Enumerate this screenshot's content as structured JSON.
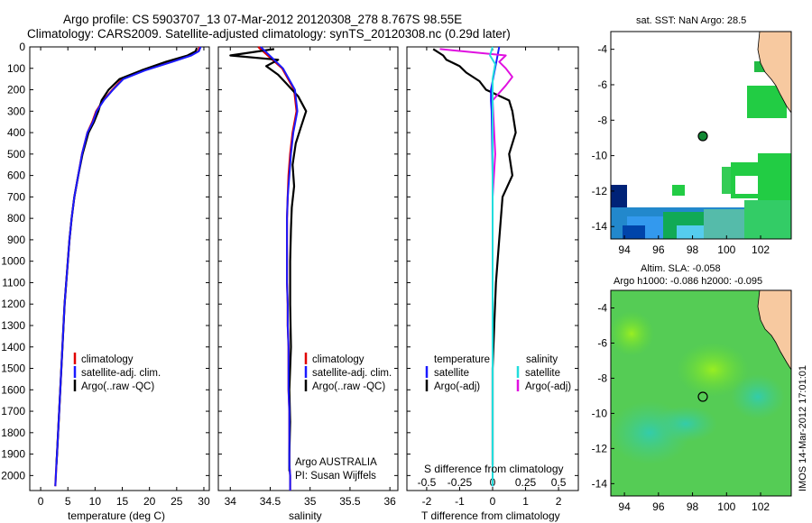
{
  "title": {
    "line1": "Argo profile: CS 5903707_13 07-Mar-2012 20120308_278 8.767S 98.55E",
    "line2": "Climatology: CARS2009. Satellite-adjusted climatology: synTS_20120308.nc (0.29d later)"
  },
  "stamp": "IMOS 14-Mar-2012 17:01:01",
  "colors": {
    "climatology": "#e00000",
    "satellite": "#1a1aff",
    "argo": "#000000",
    "salinity_satellite": "#22dddd",
    "salinity_argo": "#e010e0",
    "land": "#f7c9a0",
    "sst_green": "#11cc44",
    "sla_green": "#66dd33",
    "sla_cyan": "#33ccaa",
    "float_marker": "#118833"
  },
  "panels": {
    "temperature": {
      "xlabel": "temperature (deg C)",
      "xticks": [
        "0",
        "5",
        "10",
        "15",
        "20",
        "25",
        "30"
      ],
      "legend": [
        "climatology",
        "satellite-adj. clim.",
        "Argo(..raw -QC)"
      ]
    },
    "salinity": {
      "xlabel": "salinity",
      "xticks": [
        "34",
        "34.5",
        "35",
        "35.5",
        "36"
      ],
      "legend": [
        "climatology",
        "satellite-adj. clim.",
        "Argo(..raw -QC)"
      ],
      "annot1": "Argo AUSTRALIA",
      "annot2": "PI: Susan Wijffels"
    },
    "difference": {
      "xlabel": "T difference from climatology",
      "top_xlabel": "S difference from climatology",
      "xticks": [
        "-2",
        "-1",
        "0",
        "1",
        "2"
      ],
      "top_xticks": [
        "-0.5",
        "-0.25",
        "0",
        "0.25",
        "0.5"
      ],
      "legend_temp_head": "temperature",
      "legend_sal_head": "salinity",
      "legend_temp": [
        "satellite",
        "Argo(-adj)"
      ],
      "legend_sal": [
        "satellite",
        "Argo(-adj)"
      ]
    },
    "sst_map": {
      "title": "sat. SST: NaN Argo: 28.5",
      "xticks": [
        "94",
        "96",
        "98",
        "100",
        "102"
      ],
      "yticks": [
        "-4",
        "-6",
        "-8",
        "-10",
        "-12",
        "-14"
      ]
    },
    "sla_map": {
      "title1": "Altim. SLA: -0.058",
      "title2": "Argo h1000: -0.086 h2000: -0.095",
      "xticks": [
        "94",
        "96",
        "98",
        "100",
        "102"
      ],
      "yticks": [
        "-4",
        "-6",
        "-8",
        "-10",
        "-12",
        "-14"
      ]
    }
  },
  "yticks": [
    "0",
    "100",
    "200",
    "300",
    "400",
    "500",
    "600",
    "700",
    "800",
    "900",
    "1000",
    "1100",
    "1200",
    "1300",
    "1400",
    "1500",
    "1600",
    "1700",
    "1800",
    "1900",
    "2000"
  ],
  "chart_data": [
    {
      "type": "line",
      "title": "",
      "xlabel": "temperature (deg C)",
      "ylabel": "",
      "xlim": [
        -2,
        31
      ],
      "ylim": [
        2070,
        0
      ],
      "series": [
        {
          "name": "climatology",
          "x": [
            29.2,
            29.0,
            27.5,
            24,
            19,
            15,
            13.2,
            11.5,
            10.2,
            9.5,
            8.6,
            7.6,
            6.9,
            6.2,
            5.7,
            5.3,
            5.0,
            4.7,
            4.4,
            4.2,
            4.0,
            3.8,
            3.6,
            3.4,
            3.2,
            3.0,
            2.9,
            2.8,
            2.7
          ],
          "y": [
            0,
            20,
            40,
            70,
            110,
            150,
            200,
            250,
            300,
            350,
            400,
            500,
            600,
            700,
            800,
            900,
            1000,
            1100,
            1200,
            1300,
            1400,
            1500,
            1600,
            1700,
            1800,
            1900,
            1950,
            2000,
            2050
          ]
        },
        {
          "name": "satellite-adj. clim.",
          "x": [
            29.4,
            29.1,
            27.7,
            24.2,
            19.2,
            15.2,
            13.3,
            11.6,
            10.3,
            9.6,
            8.6,
            7.6,
            6.9,
            6.2,
            5.7,
            5.3,
            5.0,
            4.7,
            4.4,
            4.2,
            4.0,
            3.8,
            3.6,
            3.4,
            3.2,
            3.0,
            2.9,
            2.8,
            2.7
          ],
          "y": [
            0,
            20,
            40,
            70,
            110,
            150,
            200,
            250,
            300,
            350,
            400,
            500,
            600,
            700,
            800,
            900,
            1000,
            1100,
            1200,
            1300,
            1400,
            1500,
            1600,
            1700,
            1800,
            1900,
            1950,
            2000,
            2050
          ]
        },
        {
          "name": "Argo(..raw -QC)",
          "x": [
            28.7,
            28.5,
            27,
            23,
            18.5,
            14.5,
            12.5,
            11.2,
            10.6,
            9.8,
            8.8,
            7.7,
            6.9,
            6.2,
            5.7,
            5.3,
            5.0,
            4.7,
            4.4,
            4.2,
            4.0,
            3.8,
            3.6,
            3.4,
            3.2,
            3.0,
            2.9
          ],
          "y": [
            5,
            20,
            40,
            70,
            110,
            150,
            200,
            250,
            300,
            350,
            400,
            500,
            600,
            700,
            800,
            900,
            1000,
            1100,
            1200,
            1300,
            1400,
            1500,
            1600,
            1700,
            1800,
            1900,
            1950
          ]
        }
      ]
    },
    {
      "type": "line",
      "title": "",
      "xlabel": "salinity",
      "ylabel": "",
      "xlim": [
        33.85,
        36.1
      ],
      "ylim": [
        2070,
        0
      ],
      "series": [
        {
          "name": "climatology",
          "x": [
            34.35,
            34.5,
            34.65,
            34.8,
            34.83,
            34.78,
            34.75,
            34.73,
            34.72,
            34.71,
            34.71,
            34.71,
            34.71,
            34.72,
            34.72,
            34.73,
            34.73,
            34.73,
            34.74,
            34.74,
            34.74,
            34.74,
            34.75,
            34.75,
            34.75
          ],
          "y": [
            0,
            50,
            100,
            200,
            300,
            400,
            500,
            600,
            700,
            800,
            900,
            1000,
            1100,
            1200,
            1300,
            1400,
            1500,
            1600,
            1700,
            1800,
            1900,
            1950,
            2000,
            2050,
            2070
          ]
        },
        {
          "name": "satellite-adj. clim.",
          "x": [
            34.38,
            34.52,
            34.66,
            34.81,
            34.84,
            34.79,
            34.76,
            34.74,
            34.72,
            34.71,
            34.71,
            34.71,
            34.71,
            34.72,
            34.72,
            34.73,
            34.73,
            34.73,
            34.74,
            34.74,
            34.74,
            34.74,
            34.75,
            34.75,
            34.75
          ],
          "y": [
            0,
            50,
            100,
            200,
            300,
            400,
            500,
            600,
            700,
            800,
            900,
            1000,
            1100,
            1200,
            1300,
            1400,
            1500,
            1600,
            1700,
            1800,
            1900,
            1950,
            2000,
            2050,
            2070
          ]
        },
        {
          "name": "Argo(..raw -QC)",
          "x": [
            34.55,
            34.0,
            34.6,
            34.45,
            34.6,
            34.7,
            34.85,
            34.95,
            34.88,
            34.82,
            34.78,
            34.8,
            34.77,
            34.76,
            34.75,
            34.75,
            34.76,
            34.74,
            34.75,
            34.74,
            34.74
          ],
          "y": [
            10,
            40,
            60,
            90,
            130,
            170,
            230,
            300,
            380,
            450,
            550,
            650,
            750,
            850,
            1000,
            1200,
            1400,
            1600,
            1750,
            1900,
            1980
          ]
        }
      ]
    },
    {
      "type": "line",
      "title": "",
      "xlabel": "T difference from climatology",
      "ylabel": "",
      "xlim": [
        -2.6,
        2.6
      ],
      "ylim": [
        2070,
        0
      ],
      "series": [
        {
          "name": "satellite",
          "x": [
            0.2,
            0.15,
            0.1,
            0.05,
            0,
            -0.05,
            -0.05,
            -0.03,
            -0.02,
            0,
            0,
            0,
            0,
            0,
            0
          ],
          "y": [
            0,
            40,
            80,
            120,
            160,
            200,
            250,
            300,
            400,
            600,
            800,
            1200,
            1600,
            1900,
            2050
          ]
        },
        {
          "name": "Argo(-adj)",
          "x": [
            -1.8,
            -1.5,
            -1.4,
            -1.0,
            -0.8,
            -0.4,
            -0.2,
            0.5,
            0.6,
            0.7,
            0.5,
            0.6,
            0.3,
            0.2,
            0.1,
            0.05,
            0.0,
            0.0,
            0.0
          ],
          "y": [
            10,
            40,
            60,
            90,
            120,
            160,
            200,
            250,
            300,
            400,
            500,
            600,
            700,
            900,
            1100,
            1300,
            1500,
            1700,
            1950
          ]
        }
      ]
    },
    {
      "type": "line",
      "title": "",
      "xlabel": "S difference from climatology",
      "ylabel": "",
      "xlim": [
        -0.65,
        0.65
      ],
      "ylim": [
        2070,
        0
      ],
      "series": [
        {
          "name": "satellite",
          "x": [
            0.0,
            -0.02,
            0.02,
            0.0,
            0.0,
            0.0,
            0.0,
            0.0,
            0.0
          ],
          "y": [
            0,
            40,
            80,
            150,
            300,
            600,
            1000,
            1500,
            2050
          ]
        },
        {
          "name": "Argo(-adj)",
          "x": [
            -0.4,
            0.1,
            0.05,
            0.1,
            0.15,
            0.1,
            0.0,
            0.02,
            0.0,
            0.0,
            0.0
          ],
          "y": [
            10,
            40,
            70,
            100,
            140,
            180,
            250,
            500,
            700,
            1000,
            1300
          ]
        }
      ]
    }
  ]
}
